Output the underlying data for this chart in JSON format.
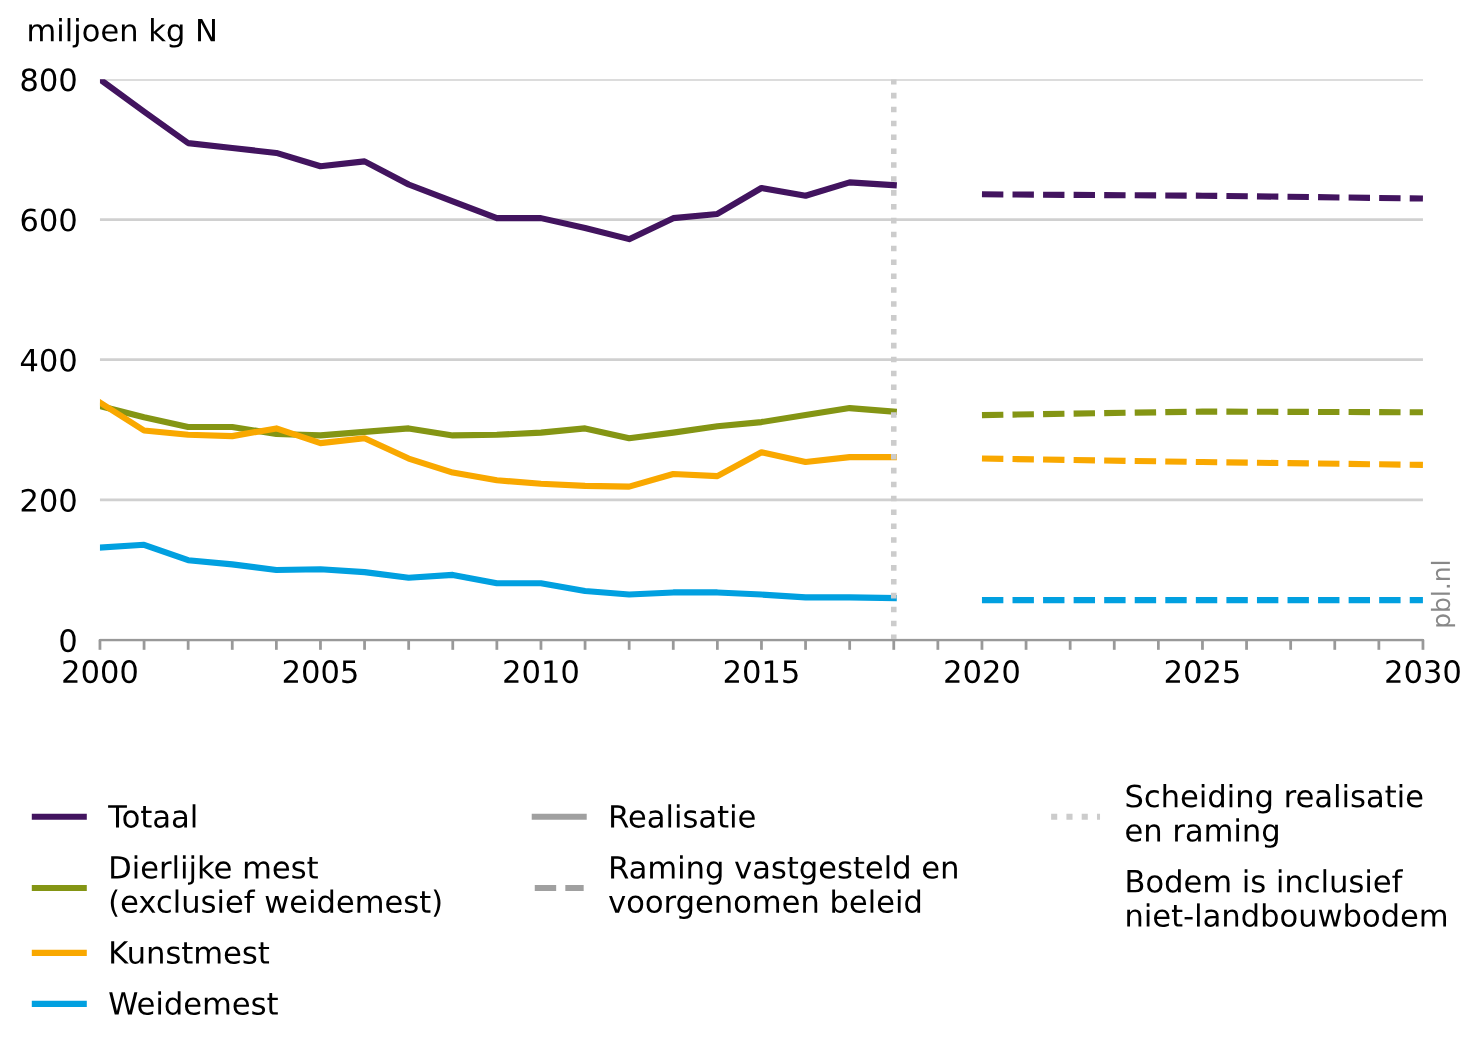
{
  "chart_data": {
    "type": "line",
    "ylabel": "miljoen kg N",
    "x": [
      2000,
      2001,
      2002,
      2003,
      2004,
      2005,
      2006,
      2007,
      2008,
      2009,
      2010,
      2011,
      2012,
      2013,
      2014,
      2015,
      2016,
      2017,
      2018
    ],
    "series": [
      {
        "name": "Totaal",
        "color": "#42145f",
        "values": [
          800,
          754,
          709,
          702,
          695,
          676,
          683,
          650,
          626,
          602,
          602,
          588,
          572,
          602,
          608,
          645,
          634,
          653,
          649
        ]
      },
      {
        "name": "Dierlijke mest\n(exclusief weidemest)",
        "color": "#849514",
        "values": [
          334,
          318,
          304,
          304,
          294,
          292,
          297,
          302,
          292,
          293,
          296,
          302,
          288,
          296,
          305,
          311,
          321,
          331,
          326
        ]
      },
      {
        "name": "Kunstmest",
        "color": "#f9a800",
        "values": [
          339,
          299,
          293,
          291,
          302,
          281,
          288,
          259,
          239,
          228,
          223,
          220,
          219,
          237,
          234,
          268,
          254,
          261,
          261
        ]
      },
      {
        "name": "Weidemest",
        "color": "#01a0e0",
        "values": [
          132,
          136,
          114,
          108,
          100,
          101,
          97,
          89,
          93,
          81,
          81,
          70,
          65,
          68,
          68,
          65,
          61,
          61,
          60
        ]
      },
      {
        "color": "#42145f",
        "x": [
          2020,
          2025,
          2030
        ],
        "values": [
          636,
          634,
          630
        ],
        "line_style": "dashed"
      },
      {
        "color": "#849514",
        "x": [
          2020,
          2025,
          2030
        ],
        "values": [
          321,
          326,
          325
        ],
        "line_style": "dashed"
      },
      {
        "color": "#f9a800",
        "x": [
          2020,
          2025,
          2030
        ],
        "values": [
          259,
          254,
          250
        ],
        "line_style": "dashed"
      },
      {
        "color": "#01a0e0",
        "x": [
          2020,
          2025,
          2030
        ],
        "values": [
          57,
          57,
          57
        ],
        "line_style": "dashed"
      }
    ],
    "xlim": [
      2000,
      2030
    ],
    "xticks": [
      2000,
      {
        "value": 2001,
        "label": null
      },
      {
        "value": 2002,
        "label": null
      },
      {
        "value": 2003,
        "label": null
      },
      {
        "value": 2004,
        "label": null
      },
      2005,
      {
        "value": 2006,
        "label": null
      },
      {
        "value": 2007,
        "label": null
      },
      {
        "value": 2008,
        "label": null
      },
      {
        "value": 2009,
        "label": null
      },
      2010,
      {
        "value": 2011,
        "label": null
      },
      {
        "value": 2012,
        "label": null
      },
      {
        "value": 2013,
        "label": null
      },
      {
        "value": 2014,
        "label": null
      },
      2015,
      {
        "value": 2016,
        "label": null
      },
      {
        "value": 2017,
        "label": null
      },
      {
        "value": 2018,
        "label": null
      },
      {
        "value": 2019,
        "label": null
      },
      2020,
      {
        "value": 2021,
        "label": null
      },
      {
        "value": 2022,
        "label": null
      },
      {
        "value": 2023,
        "label": null
      },
      {
        "value": 2024,
        "label": null
      },
      2025,
      {
        "value": 2026,
        "label": null
      },
      {
        "value": 2027,
        "label": null
      },
      {
        "value": 2028,
        "label": null
      },
      {
        "value": 2029,
        "label": null
      },
      2030
    ],
    "ylim": [
      0,
      800
    ],
    "yticks": [
      0,
      200,
      400,
      600,
      800
    ],
    "grid": "y",
    "legend": "bottom",
    "ref_lines": [
      {
        "axis": "x",
        "value": 2018,
        "label": "Scheiding realisatie\nen raming",
        "color": "#cccccc",
        "line_style": "dotted"
      }
    ],
    "annotations": [
      "Realisatie",
      "Raming vastgesteld en\nvoorgenomen beleid",
      "Bodem is inclusief\nniet-landbouwbodem",
      "pbl.nl"
    ]
  }
}
